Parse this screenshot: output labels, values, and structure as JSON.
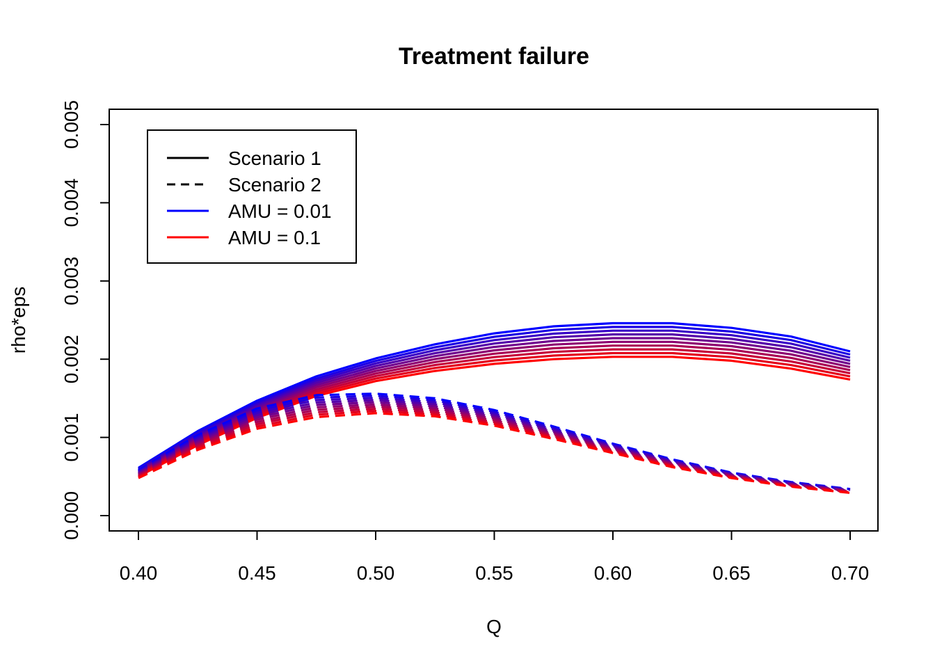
{
  "chart_data": {
    "type": "line",
    "title": "Treatment failure",
    "xlabel": "Q",
    "ylabel": "rho*eps",
    "xlim": [
      0.4,
      0.7
    ],
    "ylim": [
      0,
      0.005
    ],
    "x_ticks": [
      "0.40",
      "0.45",
      "0.50",
      "0.55",
      "0.60",
      "0.65",
      "0.70"
    ],
    "y_ticks": [
      "0.000",
      "0.001",
      "0.002",
      "0.003",
      "0.004",
      "0.005"
    ],
    "grid": false,
    "legend": {
      "position": "top-left",
      "entries": [
        {
          "label": "Scenario 1",
          "color": "#000000",
          "style": "solid"
        },
        {
          "label": "Scenario 2",
          "color": "#000000",
          "style": "dashed"
        },
        {
          "label": "AMU = 0.01",
          "color": "#0000ff",
          "style": "solid"
        },
        {
          "label": "AMU = 0.1",
          "color": "#ff0000",
          "style": "solid"
        }
      ]
    },
    "x": [
      0.4,
      0.425,
      0.45,
      0.475,
      0.5,
      0.525,
      0.55,
      0.575,
      0.6,
      0.625,
      0.65,
      0.675,
      0.7
    ],
    "series_groups": [
      {
        "scenario": "Scenario 1",
        "style": "solid",
        "amu_low": {
          "amu": 0.01,
          "color": "#0000ff",
          "values": [
            0.00061,
            0.00108,
            0.00147,
            0.00178,
            0.00201,
            0.00219,
            0.00233,
            0.00242,
            0.00246,
            0.00246,
            0.0024,
            0.00229,
            0.0021
          ]
        },
        "amu_high": {
          "amu": 0.1,
          "color": "#ff0000",
          "values": [
            0.0005,
            0.0009,
            0.00125,
            0.00153,
            0.00172,
            0.00185,
            0.00194,
            0.002,
            0.00203,
            0.00203,
            0.00198,
            0.00188,
            0.00174
          ]
        }
      },
      {
        "scenario": "Scenario 2",
        "style": "dashed",
        "amu_low": {
          "amu": 0.01,
          "color": "#0000ff",
          "values": [
            0.00058,
            0.00103,
            0.00137,
            0.00154,
            0.00156,
            0.0015,
            0.00135,
            0.00114,
            0.00092,
            0.00072,
            0.00055,
            0.00043,
            0.00034
          ]
        },
        "amu_high": {
          "amu": 0.1,
          "color": "#ff0000",
          "values": [
            0.00048,
            0.00084,
            0.00111,
            0.00126,
            0.00131,
            0.00127,
            0.00115,
            0.00098,
            0.0008,
            0.00062,
            0.00048,
            0.00037,
            0.00029
          ]
        }
      }
    ],
    "curves_per_group": 10
  }
}
